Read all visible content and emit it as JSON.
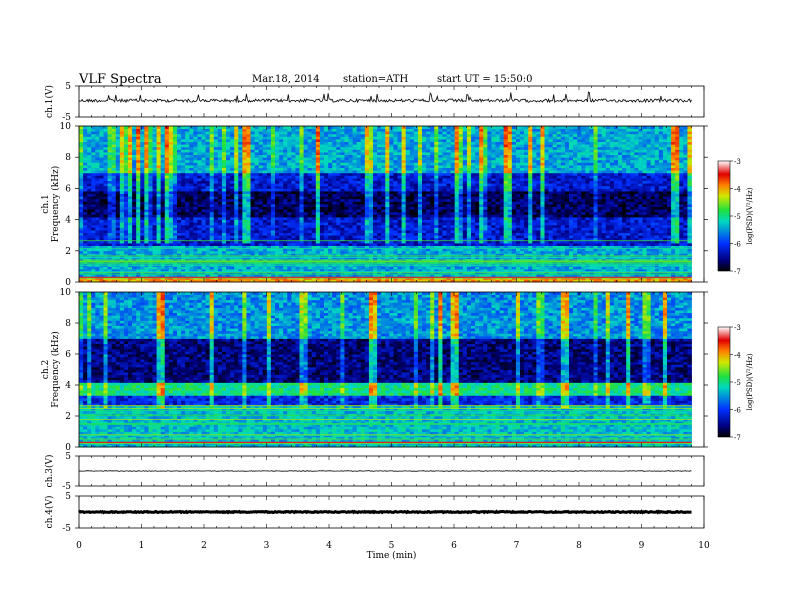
{
  "header": {
    "title": "VLF Spectra",
    "date": "Mar.18, 2014",
    "station": "station=ATH",
    "start": "start UT =  15:50:0"
  },
  "chart_data": [
    {
      "type": "line",
      "panel": "ch1-waveform",
      "ylabel": "ch.1(V)",
      "yticks": [
        "5",
        "-5"
      ],
      "ylim": [
        -5,
        5
      ],
      "description_level_V": 0.3
    },
    {
      "type": "heatmap",
      "panel": "ch1-spectrogram",
      "ylabel": "ch.1 Frequency (kHz)",
      "yticks": [
        "0",
        "2",
        "4",
        "6",
        "8",
        "10"
      ],
      "ylim": [
        0,
        10
      ],
      "colorbar": {
        "label": "log(PSD)(V²/Hz)",
        "ticks": [
          "-3",
          "-4",
          "-5",
          "-6",
          "-7"
        ],
        "range": [
          -7,
          -3
        ]
      },
      "bands_kHz": [
        {
          "from": 0,
          "to": 0.3,
          "level": -4.2
        },
        {
          "from": 0.3,
          "to": 2.4,
          "level": -5.6
        },
        {
          "from": 2.4,
          "to": 4.2,
          "level": -6.3
        },
        {
          "from": 4.2,
          "to": 5.8,
          "level": -6.7
        },
        {
          "from": 5.8,
          "to": 7.0,
          "level": -6.3
        },
        {
          "from": 7.0,
          "to": 10,
          "level": -5.6
        }
      ]
    },
    {
      "type": "heatmap",
      "panel": "ch2-spectrogram",
      "ylabel": "ch.2 Frequency (kHz)",
      "yticks": [
        "0",
        "2",
        "4",
        "6",
        "8",
        "10"
      ],
      "ylim": [
        0,
        10
      ],
      "colorbar": {
        "label": "log(PSD)(V²/Hz)",
        "ticks": [
          "-3",
          "-4",
          "-5",
          "-6",
          "-7"
        ],
        "range": [
          -7,
          -3
        ]
      },
      "bands_kHz": [
        {
          "from": 0,
          "to": 2.6,
          "level": -5.5
        },
        {
          "from": 2.6,
          "to": 3.4,
          "level": -6.2
        },
        {
          "from": 3.4,
          "to": 4.2,
          "level": -5.2
        },
        {
          "from": 4.2,
          "to": 7.0,
          "level": -6.6
        },
        {
          "from": 7.0,
          "to": 10,
          "level": -5.7
        }
      ]
    },
    {
      "type": "line",
      "panel": "ch3-waveform",
      "ylabel": "ch.3(V)",
      "yticks": [
        "5",
        "-5"
      ],
      "ylim": [
        -5,
        5
      ],
      "description_level_V": 0
    },
    {
      "type": "line",
      "panel": "ch4-waveform",
      "ylabel": "ch.4(V)",
      "yticks": [
        "5",
        "-5"
      ],
      "ylim": [
        -5,
        5
      ],
      "description_level_V": 0
    }
  ],
  "xaxis": {
    "label": "Time (min)",
    "ticks": [
      "0",
      "1",
      "2",
      "3",
      "4",
      "5",
      "6",
      "7",
      "8",
      "9",
      "10"
    ],
    "xlim": [
      0,
      10
    ],
    "data_end_min": 9.8
  }
}
